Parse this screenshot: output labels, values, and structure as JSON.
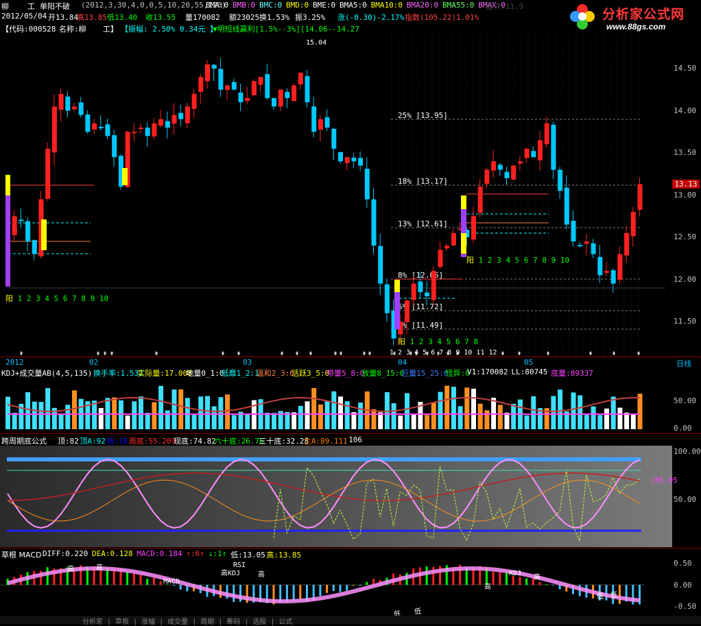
{
  "header": {
    "stock_short_a": "柳",
    "stock_short_b": "工",
    "formula_name": "单阳不破",
    "params": "(2012,3,30,4,0,0,5,10,20,55,120)",
    "bma": [
      {
        "label": "BMA:0",
        "color": "#ffffff"
      },
      {
        "label": "BMB:0",
        "color": "#ff66ff"
      },
      {
        "label": "BMC:0",
        "color": "#66ffff"
      },
      {
        "label": "BMD:0",
        "color": "#ffff00"
      },
      {
        "label": "BME:0",
        "color": "#ffffff"
      },
      {
        "label": "BMA5:0",
        "color": "#ffffff"
      },
      {
        "label": "BMA10:0",
        "color": "#ffff00"
      },
      {
        "label": "BMA20:0",
        "color": "#ff66ff"
      },
      {
        "label": "BMA55:0",
        "color": "#66ff66"
      },
      {
        "label": "BMAX:0",
        "color": "#ff66ff"
      }
    ],
    "faded_text": "盘价:11.9"
  },
  "quote_line": {
    "date": "2012/05/04",
    "open": "开13.84",
    "high": "高13.85",
    "low": "低13.40",
    "close": "收13.55",
    "volume": "量170082",
    "amount": "额23025",
    "turnover": "换1.53%",
    "amplitude": "振3.25%",
    "change": "涨(-0.30)-2.17%",
    "index": "指数(105.22)1.01%"
  },
  "info_line": {
    "code": "【代码:000528",
    "name": "名称:柳",
    "name2": "工】",
    "amplitude": "【振幅: 2.50% 0.34元 】",
    "trend": "▼明短线赢利[1.5%--3%][14.06--14.27",
    "peak": "15.04"
  },
  "price_axis": [
    "14.50",
    "14.00",
    "13.50",
    "13.00",
    "12.50",
    "12.00",
    "11.50"
  ],
  "current_price_tag": "13.13",
  "fib_labels": [
    {
      "pct": "25%",
      "price": "[13.95]"
    },
    {
      "pct": "18%",
      "price": "[13.17]"
    },
    {
      "pct": "13%",
      "price": "[12.61]"
    },
    {
      "pct": "8%",
      "price": "[12.05]"
    },
    {
      "pct": "5%",
      "price": "[11.72]"
    },
    {
      "pct": "3%",
      "price": "[11.49]"
    }
  ],
  "yang_counters": [
    {
      "prefix": "阳",
      "digits": "1 2 3 4 5 6 7 8 9 10"
    },
    {
      "prefix": "阳",
      "digits": "1 2 3 4 5 6 7 8 9 10"
    },
    {
      "prefix": "阳",
      "digits": "1 2 3 4 5 6 7 8"
    }
  ],
  "time_axis": {
    "labels": [
      "2012",
      "02",
      "03",
      "04",
      "05"
    ],
    "day_labels": "1 2 3 4 5 6 7 8 9 10 11 12",
    "period": "日线"
  },
  "volume_panel": {
    "title": "KDJ+成交量AB(4,5,135)",
    "fields": [
      {
        "text": "换手率:1.532",
        "color": "#00ffff"
      },
      {
        "text": "实际量:17.008",
        "color": "#ffff00"
      },
      {
        "text": "地量0_1:0",
        "color": "#ffffff"
      },
      {
        "text": "低靡1_2:1",
        "color": "#00ffff"
      },
      {
        "text": "温和2_3:0",
        "color": "#ff8040"
      },
      {
        "text": "活跃3_5:0",
        "color": "#ffff00"
      },
      {
        "text": "带量5_8:0",
        "color": "#ff40ff"
      },
      {
        "text": "放量8_15:0",
        "color": "#00ff00"
      },
      {
        "text": "巨量15_25:0",
        "color": "#4080ff"
      },
      {
        "text": "怪异:0",
        "color": "#00ff00"
      },
      {
        "text": "V1:170082",
        "color": "#ffffff"
      },
      {
        "text": "LL:80745",
        "color": "#ffffff"
      },
      {
        "text": "底量:89337",
        "color": "#ff40ff"
      }
    ],
    "axis": [
      "50.00",
      "0.00"
    ]
  },
  "cycle_panel": {
    "title": "跨周期底公式",
    "fields": [
      {
        "text": "顶:82",
        "color": "#ffffff"
      },
      {
        "text": "顶A:92",
        "color": "#00ffff"
      },
      {
        "text": "低:18",
        "color": "#0000ff"
      },
      {
        "text": "周底:55.209",
        "color": "#ff3030"
      },
      {
        "text": "现底:74.82",
        "color": "#ffffff"
      },
      {
        "text": "六十底:26.76",
        "color": "#00ff00"
      },
      {
        "text": "三十底:32.28",
        "color": "#ffffff"
      },
      {
        "text": "主A:89.111",
        "color": "#ff8000"
      },
      {
        "text": "106",
        "color": "#ffffff"
      }
    ],
    "axis": [
      "100.00",
      "50.00"
    ],
    "marker_value": "(85.05"
  },
  "macd_panel": {
    "title": "草根 MACD",
    "fields": [
      {
        "text": "DIFF:0.220",
        "color": "#ffffff"
      },
      {
        "text": "DEA:0.128",
        "color": "#ffff00"
      },
      {
        "text": "MACD:0.184",
        "color": "#ff40ff"
      },
      {
        "text": "↑:6↑",
        "color": "#ff3030"
      },
      {
        "text": "↓:1↑",
        "color": "#00ff00"
      },
      {
        "text": "低:13.05",
        "color": "#ffffff"
      },
      {
        "text": "高:13.85",
        "color": "#ffff00"
      }
    ],
    "axis": [
      "0.50",
      "0.00",
      "-0.50"
    ],
    "annotations": [
      "高",
      "高",
      "高KDJ",
      "高",
      "MACD",
      "RSI",
      "KDJ",
      "高",
      "高",
      "低",
      "低",
      "低",
      "低"
    ]
  },
  "logo": {
    "title": "分析家公式网",
    "url": "www.88gs.com"
  },
  "bottom_bar": "分析家 | 草根 | 涨幅 | 成交量 | 周期 | 筹码 | 选股 | 公式"
}
